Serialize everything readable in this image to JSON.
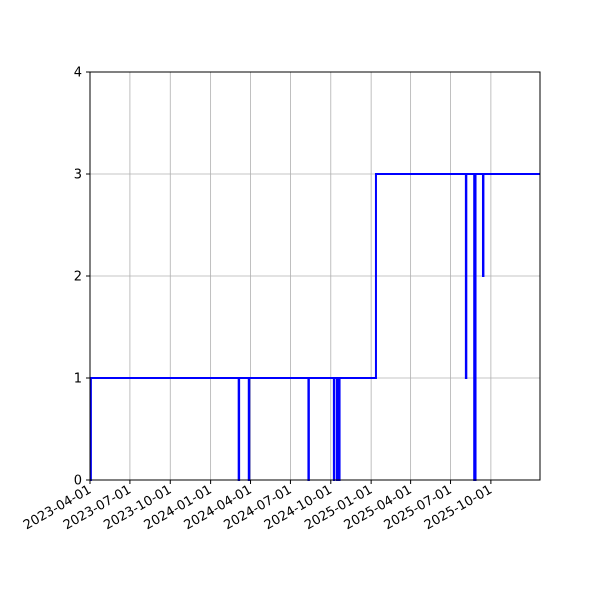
{
  "chart_data": {
    "type": "line",
    "title": "",
    "xlabel": "",
    "ylabel": "",
    "x_axis_type": "date",
    "xlim": [
      "2023-04-01",
      "2026-01-21"
    ],
    "ylim": [
      0,
      4
    ],
    "grid": true,
    "legend": "none",
    "line_color": "#0000ff",
    "x_ticks": [
      "2023-04-01",
      "2023-07-01",
      "2023-10-01",
      "2024-01-01",
      "2024-04-01",
      "2024-07-01",
      "2024-10-01",
      "2025-01-01",
      "2025-04-01",
      "2025-07-01",
      "2025-10-01"
    ],
    "y_ticks": [
      0,
      1,
      2,
      3,
      4
    ],
    "series": [
      {
        "step": "post",
        "points": [
          [
            "2023-04-01",
            0
          ],
          [
            "2023-04-03",
            1
          ],
          [
            "2024-03-05",
            0
          ],
          [
            "2024-03-06",
            1
          ],
          [
            "2024-03-28",
            0
          ],
          [
            "2024-03-29",
            1
          ],
          [
            "2024-08-11",
            0
          ],
          [
            "2024-08-12",
            1
          ],
          [
            "2024-10-08",
            0
          ],
          [
            "2024-10-09",
            1
          ],
          [
            "2024-10-15",
            0
          ],
          [
            "2024-10-16",
            1
          ],
          [
            "2024-10-20",
            0
          ],
          [
            "2024-10-21",
            1
          ],
          [
            "2025-01-12",
            3
          ],
          [
            "2025-08-05",
            1
          ],
          [
            "2025-08-06",
            3
          ],
          [
            "2025-08-24",
            0
          ],
          [
            "2025-08-27",
            3
          ],
          [
            "2025-09-13",
            2
          ],
          [
            "2025-09-14",
            3
          ],
          [
            "2026-01-21",
            3
          ]
        ]
      }
    ]
  }
}
